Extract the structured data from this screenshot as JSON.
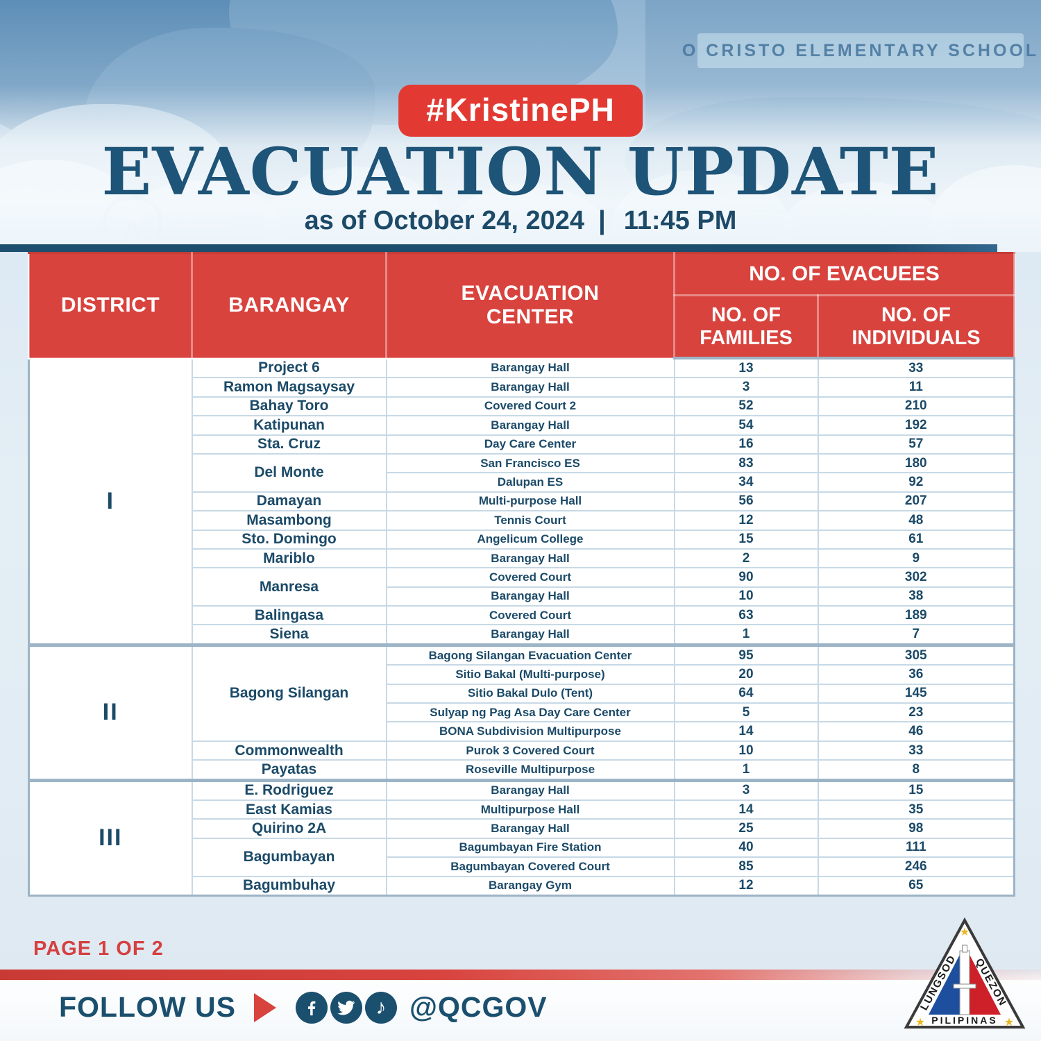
{
  "header": {
    "hashtag": "#KristinePH",
    "title": "EVACUATION UPDATE",
    "as_of": "as of October 24, 2024",
    "separator": "|",
    "time": "11:45 PM",
    "background_sign": "O CRISTO ELEMENTARY SCHOOL"
  },
  "table": {
    "columns": {
      "district": "DISTRICT",
      "barangay": "BARANGAY",
      "center": "EVACUATION CENTER",
      "evacuees_group": "NO. OF EVACUEES",
      "families": "NO. OF FAMILIES",
      "individuals": "NO. OF INDIVIDUALS"
    },
    "districts": [
      {
        "label": "I",
        "groups": [
          {
            "barangay": "Project 6",
            "centers": [
              {
                "name": "Barangay Hall",
                "families": "13",
                "individuals": "33"
              }
            ]
          },
          {
            "barangay": "Ramon Magsaysay",
            "centers": [
              {
                "name": "Barangay Hall",
                "families": "3",
                "individuals": "11"
              }
            ]
          },
          {
            "barangay": "Bahay Toro",
            "centers": [
              {
                "name": "Covered Court 2",
                "families": "52",
                "individuals": "210"
              }
            ]
          },
          {
            "barangay": "Katipunan",
            "centers": [
              {
                "name": "Barangay Hall",
                "families": "54",
                "individuals": "192"
              }
            ]
          },
          {
            "barangay": "Sta. Cruz",
            "centers": [
              {
                "name": "Day Care Center",
                "families": "16",
                "individuals": "57"
              }
            ]
          },
          {
            "barangay": "Del Monte",
            "centers": [
              {
                "name": "San Francisco ES",
                "families": "83",
                "individuals": "180"
              },
              {
                "name": "Dalupan ES",
                "families": "34",
                "individuals": "92"
              }
            ]
          },
          {
            "barangay": "Damayan",
            "centers": [
              {
                "name": "Multi-purpose Hall",
                "families": "56",
                "individuals": "207"
              }
            ]
          },
          {
            "barangay": "Masambong",
            "centers": [
              {
                "name": "Tennis Court",
                "families": "12",
                "individuals": "48"
              }
            ]
          },
          {
            "barangay": "Sto. Domingo",
            "centers": [
              {
                "name": "Angelicum College",
                "families": "15",
                "individuals": "61"
              }
            ]
          },
          {
            "barangay": "Mariblo",
            "centers": [
              {
                "name": "Barangay Hall",
                "families": "2",
                "individuals": "9"
              }
            ]
          },
          {
            "barangay": "Manresa",
            "centers": [
              {
                "name": "Covered Court",
                "families": "90",
                "individuals": "302"
              },
              {
                "name": "Barangay Hall",
                "families": "10",
                "individuals": "38"
              }
            ]
          },
          {
            "barangay": "Balingasa",
            "centers": [
              {
                "name": "Covered Court",
                "families": "63",
                "individuals": "189"
              }
            ]
          },
          {
            "barangay": "Siena",
            "centers": [
              {
                "name": "Barangay Hall",
                "families": "1",
                "individuals": "7"
              }
            ]
          }
        ]
      },
      {
        "label": "II",
        "groups": [
          {
            "barangay": "Bagong Silangan",
            "centers": [
              {
                "name": "Bagong Silangan Evacuation Center",
                "families": "95",
                "individuals": "305"
              },
              {
                "name": "Sitio Bakal (Multi-purpose)",
                "families": "20",
                "individuals": "36"
              },
              {
                "name": "Sitio Bakal Dulo (Tent)",
                "families": "64",
                "individuals": "145"
              },
              {
                "name": "Sulyap ng Pag Asa Day Care Center",
                "families": "5",
                "individuals": "23"
              },
              {
                "name": "BONA Subdivision Multipurpose",
                "families": "14",
                "individuals": "46"
              }
            ]
          },
          {
            "barangay": "Commonwealth",
            "centers": [
              {
                "name": "Purok 3 Covered Court",
                "families": "10",
                "individuals": "33"
              }
            ]
          },
          {
            "barangay": "Payatas",
            "centers": [
              {
                "name": "Roseville Multipurpose",
                "families": "1",
                "individuals": "8"
              }
            ]
          }
        ]
      },
      {
        "label": "III",
        "groups": [
          {
            "barangay": "E. Rodriguez",
            "centers": [
              {
                "name": "Barangay Hall",
                "families": "3",
                "individuals": "15"
              }
            ]
          },
          {
            "barangay": "East Kamias",
            "centers": [
              {
                "name": "Multipurpose Hall",
                "families": "14",
                "individuals": "35"
              }
            ]
          },
          {
            "barangay": "Quirino 2A",
            "centers": [
              {
                "name": "Barangay Hall",
                "families": "25",
                "individuals": "98"
              }
            ]
          },
          {
            "barangay": "Bagumbayan",
            "centers": [
              {
                "name": "Bagumbayan Fire Station",
                "families": "40",
                "individuals": "111"
              },
              {
                "name": "Bagumbayan Covered Court",
                "families": "85",
                "individuals": "246"
              }
            ]
          },
          {
            "barangay": "Bagumbuhay",
            "centers": [
              {
                "name": "Barangay Gym",
                "families": "12",
                "individuals": "65"
              }
            ]
          }
        ]
      }
    ]
  },
  "footer": {
    "page_label": "PAGE 1 OF 2",
    "follow_us": "FOLLOW US",
    "handle": "@QCGOV",
    "logo": {
      "left_text": "LUNGSOD",
      "right_text": "QUEZON",
      "bottom_text": "PILIPINAS"
    }
  },
  "colors": {
    "table_header_red": "#d8433e",
    "badge_red": "#e23a33",
    "navy": "#1b4f6e",
    "text_blue": "#1b4a68",
    "page_label_red": "#d54040",
    "row_border": "#c7d9e6",
    "district_border": "#9cb4c6"
  }
}
